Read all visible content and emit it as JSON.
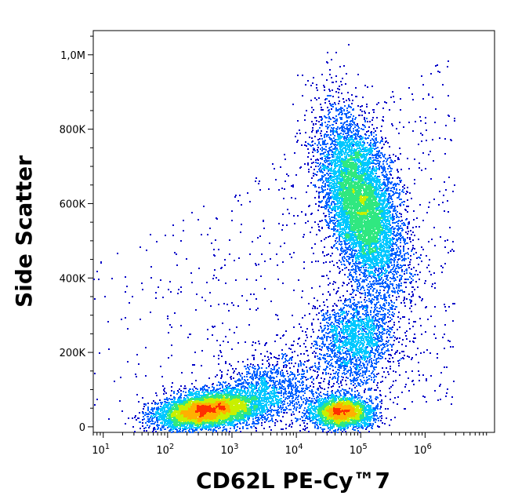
{
  "chart_data": {
    "type": "scatter",
    "subtype": "flow-cytometry-density-dot-plot",
    "title": "",
    "xlabel": "CD62L PE-Cy™7",
    "ylabel": "Side Scatter",
    "x_scale": "log",
    "y_scale": "linear",
    "xlim": [
      7,
      12000000
    ],
    "ylim": [
      -15000,
      1065000
    ],
    "x_ticks": [
      {
        "value": 10,
        "base": "10",
        "exp": "1"
      },
      {
        "value": 100,
        "base": "10",
        "exp": "2"
      },
      {
        "value": 1000,
        "base": "10",
        "exp": "3"
      },
      {
        "value": 10000,
        "base": "10",
        "exp": "4"
      },
      {
        "value": 100000,
        "base": "10",
        "exp": "5"
      },
      {
        "value": 1000000,
        "base": "10",
        "exp": "6"
      }
    ],
    "y_ticks": [
      {
        "value": 0,
        "label": "0"
      },
      {
        "value": 200000,
        "label": "200K"
      },
      {
        "value": 400000,
        "label": "400K"
      },
      {
        "value": 600000,
        "label": "600K"
      },
      {
        "value": 800000,
        "label": "800K"
      },
      {
        "value": 1000000,
        "label": "1,0M"
      }
    ],
    "grid": false,
    "legend": "none",
    "color_scale": [
      "#0000c8",
      "#0060ff",
      "#00c8ff",
      "#30e880",
      "#c8f000",
      "#ffb000",
      "#ff3000"
    ],
    "populations": [
      {
        "x_center": 400,
        "y_center": 45000,
        "relative_density": "high"
      },
      {
        "x_center": 50000,
        "y_center": 40000,
        "relative_density": "high"
      },
      {
        "x_center": 100000,
        "y_center": 600000,
        "relative_density": "high"
      },
      {
        "x_center": 80000,
        "y_center": 230000,
        "relative_density": "medium"
      }
    ]
  }
}
